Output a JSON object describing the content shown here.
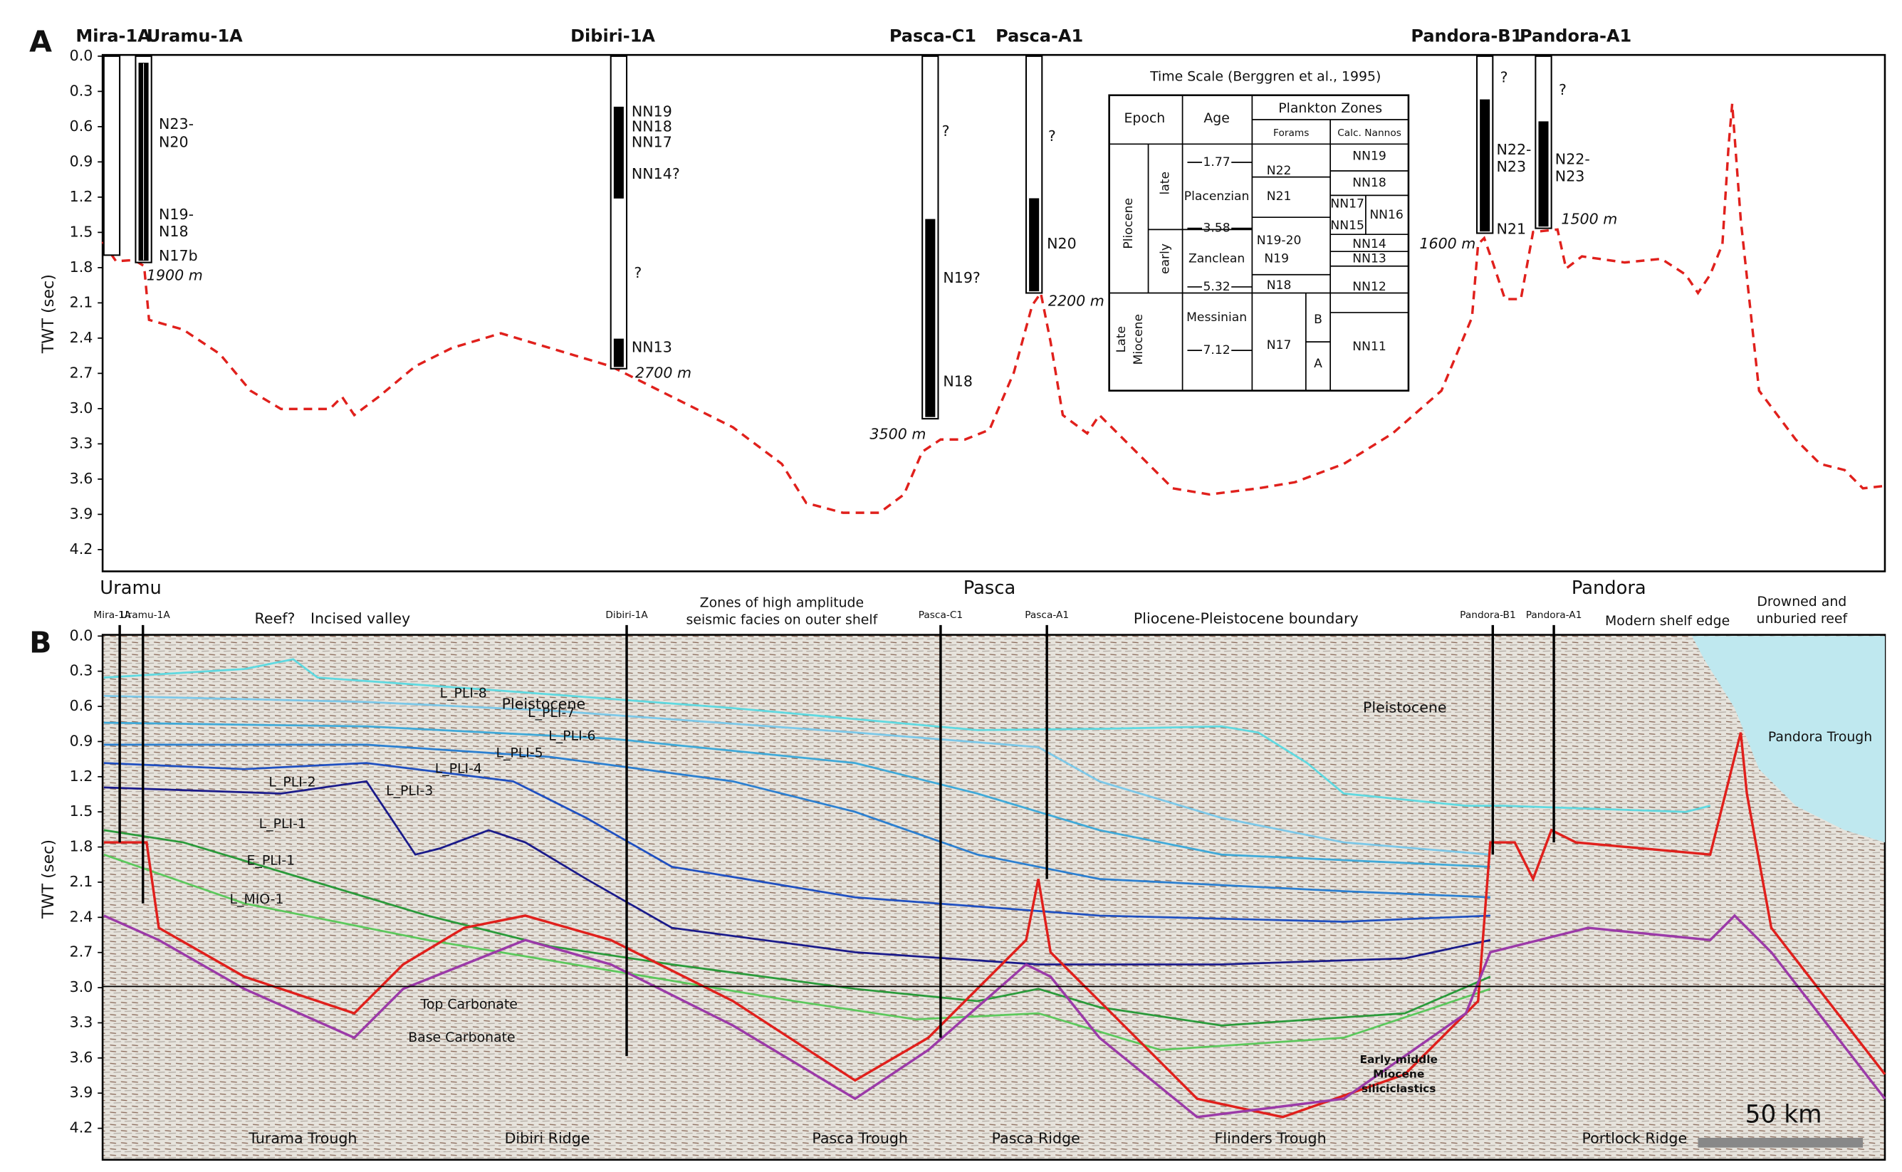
{
  "panel_a": {
    "label": "A",
    "y_axis_title": "TWT (sec)",
    "y_ticks": [
      "0.0",
      "0.3",
      "0.6",
      "0.9",
      "1.2",
      "1.5",
      "1.8",
      "2.1",
      "2.4",
      "2.7",
      "3.0",
      "3.3",
      "3.6",
      "3.9",
      "4.2"
    ],
    "wells": [
      "Mira-1A",
      "Uramu-1A",
      "Dibiri-1A",
      "Pasca-C1",
      "Pasca-A1",
      "Pandora-B1",
      "Pandora-A1"
    ],
    "well_notes": [
      "N23-",
      "N20",
      "N19-",
      "N18",
      "N17b",
      "1900 m",
      "NN19",
      "NN18",
      "NN17",
      "NN14?",
      "?",
      "NN13",
      "2700 m",
      "?",
      "N19?",
      "N18",
      "3500 m",
      "?",
      "N20",
      "2200 m",
      "?",
      "N22-",
      "N23",
      "N21",
      "1600 m",
      "?",
      "N22-",
      "N23",
      "1500 m"
    ],
    "time_scale": {
      "title": "Time Scale (Berggren et al., 1995)",
      "headers": {
        "epoch": "Epoch",
        "age": "Age",
        "plankton_zones": "Plankton Zones",
        "forams": "Forams",
        "calc_nannos": "Calc. Nannos"
      },
      "epochs": [
        "Pliocene",
        "late",
        "early",
        "Late",
        "Miocene"
      ],
      "ages": [
        "1.77",
        "3.58",
        "5.32",
        "7.12"
      ],
      "stages": [
        "Placenzian",
        "Zanclean",
        "Messinian"
      ],
      "forams": [
        "N22",
        "N21",
        "N19-20",
        "N19",
        "N18",
        "N17",
        "B",
        "A"
      ],
      "nannos": [
        "NN19",
        "NN18",
        "NN17",
        "NN16",
        "NN15",
        "NN14",
        "NN13",
        "NN12",
        "NN11"
      ]
    }
  },
  "panel_b": {
    "label": "B",
    "y_axis_title": "TWT (sec)",
    "y_ticks": [
      "0.0",
      "0.3",
      "0.6",
      "0.9",
      "1.2",
      "1.5",
      "1.8",
      "2.1",
      "2.4",
      "2.7",
      "3.0",
      "3.3",
      "3.6",
      "3.9",
      "4.2"
    ],
    "regions": [
      "Uramu",
      "Pasca",
      "Pandora"
    ],
    "wells": [
      "Mira-1A",
      "Uramu-1A",
      "Dibiri-1A",
      "Pasca-C1",
      "Pasca-A1",
      "Pandora-B1",
      "Pandora-A1"
    ],
    "annotations": [
      "Reef?",
      "Incised valley",
      "Zones of high amplitude",
      "seismic facies on outer shelf",
      "Pliocene-Pleistocene boundary",
      "Modern shelf edge",
      "Drowned and",
      "unburied reef",
      "Pleistocene",
      "Pleistocene",
      "Pandora Trough"
    ],
    "horizons": [
      "L_PLI-8",
      "L_PLI-7",
      "L_PLI-6",
      "L_PLI-5",
      "L_PLI-4",
      "L_PLI-3",
      "L_PLI-2",
      "L_PLI-1",
      "E_PLI-1",
      "L_MIO-1",
      "Top Carbonate",
      "Base Carbonate"
    ],
    "siliciclastics_note": [
      "Early-middle",
      "Miocene",
      "siliciclastics"
    ],
    "features": [
      "Turama Trough",
      "Dibiri Ridge",
      "Pasca Trough",
      "Pasca Ridge",
      "Flinders Trough",
      "Portlock Ridge"
    ],
    "scale_bar": "50 km"
  }
}
